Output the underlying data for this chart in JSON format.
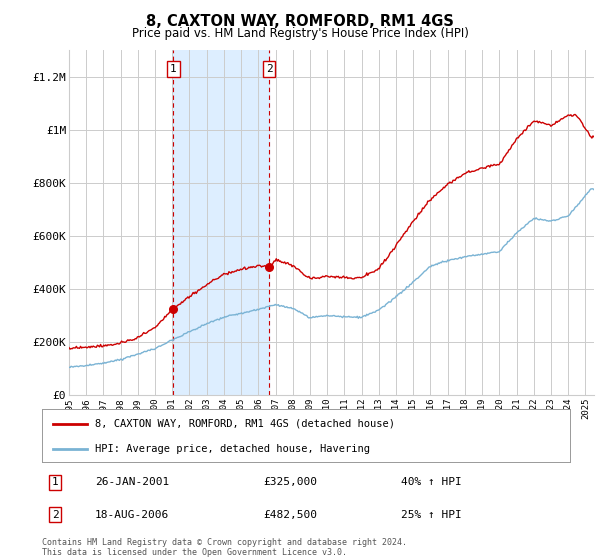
{
  "title": "8, CAXTON WAY, ROMFORD, RM1 4GS",
  "subtitle": "Price paid vs. HM Land Registry's House Price Index (HPI)",
  "ylabel_ticks": [
    "£0",
    "£200K",
    "£400K",
    "£600K",
    "£800K",
    "£1M",
    "£1.2M"
  ],
  "ytick_values": [
    0,
    200000,
    400000,
    600000,
    800000,
    1000000,
    1200000
  ],
  "ylim": [
    0,
    1300000
  ],
  "xlim_start": 1995.0,
  "xlim_end": 2025.5,
  "sale1_date": 2001.07,
  "sale1_price": 325000,
  "sale1_label": "1",
  "sale2_date": 2006.63,
  "sale2_price": 482500,
  "sale2_label": "2",
  "hpi_line_color": "#7ab3d4",
  "price_line_color": "#cc0000",
  "shading_color": "#ddeeff",
  "sale_dot_color": "#cc0000",
  "grid_color": "#cccccc",
  "background_color": "#ffffff",
  "legend_label_red": "8, CAXTON WAY, ROMFORD, RM1 4GS (detached house)",
  "legend_label_blue": "HPI: Average price, detached house, Havering",
  "annotation1_date": "26-JAN-2001",
  "annotation1_price": "£325,000",
  "annotation1_hpi": "40% ↑ HPI",
  "annotation2_date": "18-AUG-2006",
  "annotation2_price": "£482,500",
  "annotation2_hpi": "25% ↑ HPI",
  "footer": "Contains HM Land Registry data © Crown copyright and database right 2024.\nThis data is licensed under the Open Government Licence v3.0.",
  "hpi_anchors_x": [
    1995,
    1996,
    1997,
    1998,
    1999,
    2000,
    2001,
    2002,
    2003,
    2004,
    2005,
    2006,
    2007,
    2008,
    2009,
    2010,
    2011,
    2012,
    2013,
    2014,
    2015,
    2016,
    2017,
    2018,
    2019,
    2020,
    2021,
    2022,
    2023,
    2024,
    2025.3
  ],
  "hpi_anchors_y": [
    105000,
    110000,
    120000,
    135000,
    155000,
    175000,
    210000,
    240000,
    270000,
    295000,
    310000,
    325000,
    345000,
    330000,
    295000,
    305000,
    300000,
    298000,
    325000,
    375000,
    430000,
    490000,
    510000,
    525000,
    535000,
    545000,
    615000,
    670000,
    660000,
    680000,
    780000
  ],
  "red_anchors_x": [
    1995,
    1996,
    1997,
    1998,
    1999,
    2000,
    2001.07,
    2002,
    2003,
    2004,
    2005,
    2006,
    2006.63,
    2007,
    2008,
    2009,
    2010,
    2011,
    2012,
    2013,
    2014,
    2015,
    2016,
    2017,
    2018,
    2019,
    2020,
    2021,
    2022,
    2023,
    2024,
    2024.5,
    2025.3
  ],
  "red_anchors_y": [
    175000,
    180000,
    185000,
    195000,
    215000,
    255000,
    325000,
    370000,
    415000,
    455000,
    475000,
    490000,
    482500,
    510000,
    490000,
    440000,
    450000,
    445000,
    445000,
    480000,
    565000,
    660000,
    740000,
    800000,
    840000,
    860000,
    875000,
    970000,
    1040000,
    1020000,
    1060000,
    1060000,
    980000
  ]
}
